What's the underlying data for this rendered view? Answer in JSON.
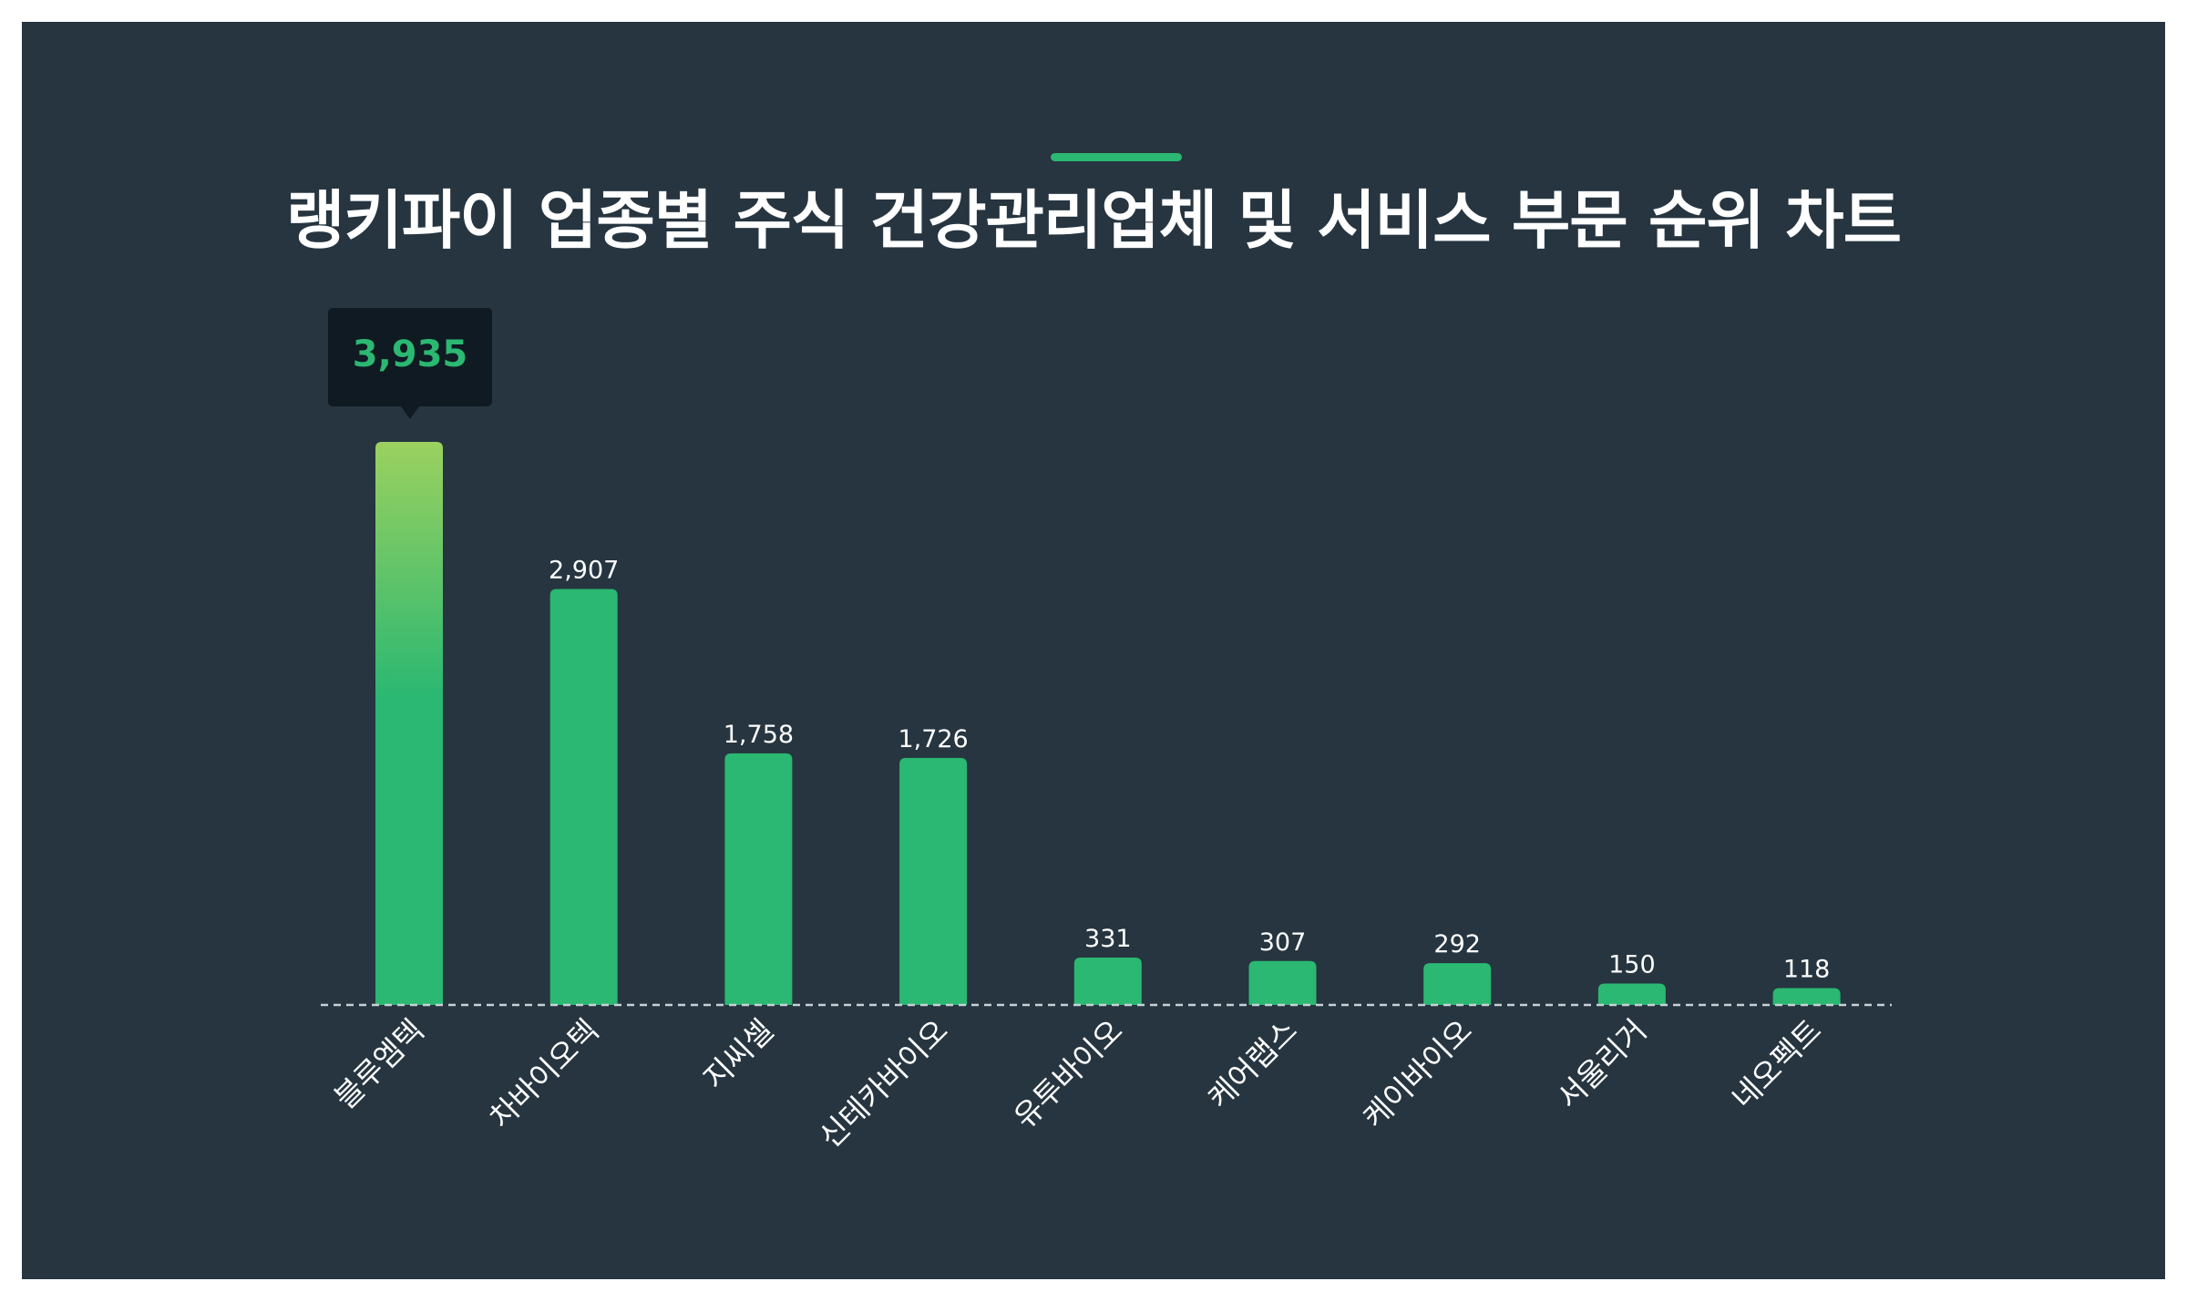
{
  "title": "랭키파이 업종별 주식 건강관리업체 및 서비스 부문 순위 차트",
  "colors": {
    "background": "#263540",
    "bar": "#2bb872",
    "bar_highlight_top": "#9bd15f",
    "tooltip_bg": "#0f1a22",
    "text": "#ffffff",
    "baseline": "#c8d0d6"
  },
  "tooltip": {
    "category": "블루엠텍",
    "value_label": "3,935"
  },
  "chart_data": {
    "type": "bar",
    "title": "랭키파이 업종별 주식 건강관리업체 및 서비스 부문 순위 차트",
    "xlabel": "",
    "ylabel": "",
    "categories": [
      "블루엠텍",
      "차바이오텍",
      "지씨셀",
      "신테카바이오",
      "유투바이오",
      "케어랩스",
      "케이바이오",
      "서울리거",
      "네오펙트"
    ],
    "values": [
      3935,
      2907,
      1758,
      1726,
      331,
      307,
      292,
      150,
      118
    ],
    "value_labels": [
      "3,935",
      "2,907",
      "1,758",
      "1,726",
      "331",
      "307",
      "292",
      "150",
      "118"
    ],
    "highlighted_index": 0,
    "ylim": [
      0,
      3935
    ],
    "grid": false,
    "legend": "none"
  }
}
